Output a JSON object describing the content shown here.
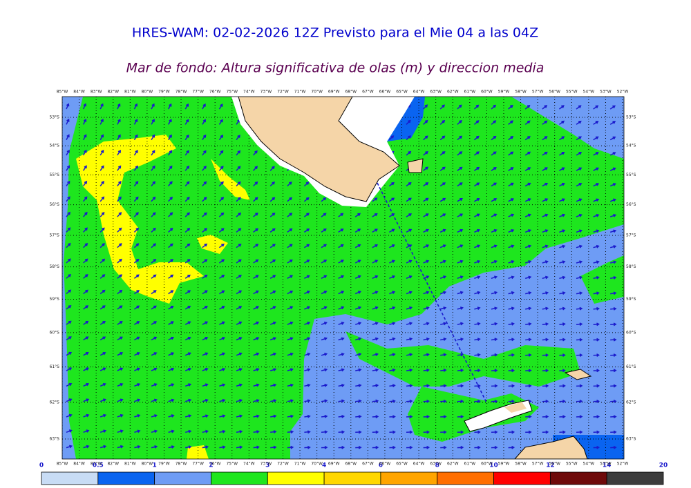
{
  "header": {
    "title": "HRES-WAM: 02-02-2026 12Z Previsto para el Mie 04 a las 04Z",
    "subtitle": "Mar de fondo: Altura significativa de olas (m) y direccion media"
  },
  "map": {
    "lon_ticks": [
      {
        "value": -85,
        "label": "85°W"
      },
      {
        "value": -84,
        "label": "84°W"
      },
      {
        "value": -83,
        "label": "83°W"
      },
      {
        "value": -82,
        "label": "82°W"
      },
      {
        "value": -81,
        "label": "81°W"
      },
      {
        "value": -80,
        "label": "80°W"
      },
      {
        "value": -79,
        "label": "79°W"
      },
      {
        "value": -78,
        "label": "78°W"
      },
      {
        "value": -77,
        "label": "77°W"
      },
      {
        "value": -76,
        "label": "76°W"
      },
      {
        "value": -75,
        "label": "75°W"
      },
      {
        "value": -74,
        "label": "74°W"
      },
      {
        "value": -73,
        "label": "73°W"
      },
      {
        "value": -72,
        "label": "72°W"
      },
      {
        "value": -71,
        "label": "71°W"
      },
      {
        "value": -70,
        "label": "70°W"
      },
      {
        "value": -69,
        "label": "69°W"
      },
      {
        "value": -68,
        "label": "68°W"
      },
      {
        "value": -67,
        "label": "67°W"
      },
      {
        "value": -66,
        "label": "66°W"
      },
      {
        "value": -65,
        "label": "65°W"
      },
      {
        "value": -64,
        "label": "64°W"
      },
      {
        "value": -63,
        "label": "63°W"
      },
      {
        "value": -62,
        "label": "62°W"
      },
      {
        "value": -61,
        "label": "61°W"
      },
      {
        "value": -60,
        "label": "60°W"
      },
      {
        "value": -59,
        "label": "59°W"
      },
      {
        "value": -58,
        "label": "58°W"
      },
      {
        "value": -57,
        "label": "57°W"
      },
      {
        "value": -56,
        "label": "56°W"
      },
      {
        "value": -55,
        "label": "55°W"
      },
      {
        "value": -54,
        "label": "54°W"
      },
      {
        "value": -53,
        "label": "53°W"
      },
      {
        "value": -52,
        "label": "52°W"
      }
    ],
    "lat_ticks": [
      {
        "value": -53,
        "label": "53°S"
      },
      {
        "value": -54,
        "label": "54°S"
      },
      {
        "value": -55,
        "label": "55°S"
      },
      {
        "value": -56,
        "label": "56°S"
      },
      {
        "value": -57,
        "label": "57°S"
      },
      {
        "value": -58,
        "label": "58°S"
      },
      {
        "value": -59,
        "label": "59°S"
      },
      {
        "value": -60,
        "label": "60°S"
      },
      {
        "value": -61,
        "label": "61°S"
      },
      {
        "value": -62,
        "label": "62°S"
      },
      {
        "value": -63,
        "label": "63°S"
      }
    ]
  },
  "colorbar": {
    "levels": [
      0,
      0.5,
      1,
      2,
      3,
      4,
      6,
      8,
      10,
      12,
      14,
      20
    ],
    "colors": [
      "#c8dcf5",
      "#0a64f0",
      "#6e9cf5",
      "#1ee61e",
      "#ffff00",
      "#ffd700",
      "#ffa500",
      "#ff6e00",
      "#ff0000",
      "#6e0a0a",
      "#3c3c3c"
    ]
  }
}
